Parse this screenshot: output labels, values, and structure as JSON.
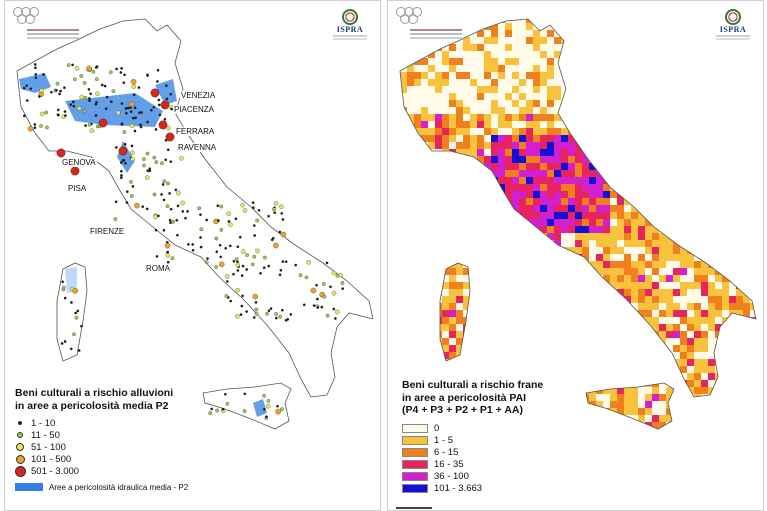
{
  "left_map": {
    "legend_title_line1": "Beni culturali a rischio alluvioni",
    "legend_title_line2": "in aree a pericolosità media P2",
    "classes": [
      {
        "label": "1 - 10",
        "color": "#1a1a1a"
      },
      {
        "label": "11 - 50",
        "color": "#9ccc5a"
      },
      {
        "label": "51 - 100",
        "color": "#e9e65a"
      },
      {
        "label": "101 - 500",
        "color": "#f0a030"
      },
      {
        "label": "501 - 3.000",
        "color": "#d8261e"
      }
    ],
    "area_label": "Aree a pericolosità idraulica media - P2",
    "area_color": "#2f7fe0",
    "cities": [
      "VENEZIA",
      "PIACENZA",
      "FERRARA",
      "RAVENNA",
      "GENOVA",
      "PISA",
      "FIRENZE",
      "ROMA"
    ]
  },
  "right_map": {
    "legend_title_line1": "Beni culturali a rischio frane",
    "legend_title_line2": "in aree a pericolosità PAI",
    "legend_title_line3": "(P4 + P3 + P2 + P1 + AA)",
    "classes": [
      {
        "label": "0",
        "color": "#fffbe8"
      },
      {
        "label": "1 - 5",
        "color": "#f8c23c"
      },
      {
        "label": "6 - 15",
        "color": "#f07f1e"
      },
      {
        "label": "16 - 35",
        "color": "#e8245e"
      },
      {
        "label": "36 - 100",
        "color": "#d21fd0"
      },
      {
        "label": "101 - 3.663",
        "color": "#1010d8"
      }
    ]
  },
  "branding": {
    "logo_text": "ISPRA",
    "brand_color": "#1f3c78"
  }
}
